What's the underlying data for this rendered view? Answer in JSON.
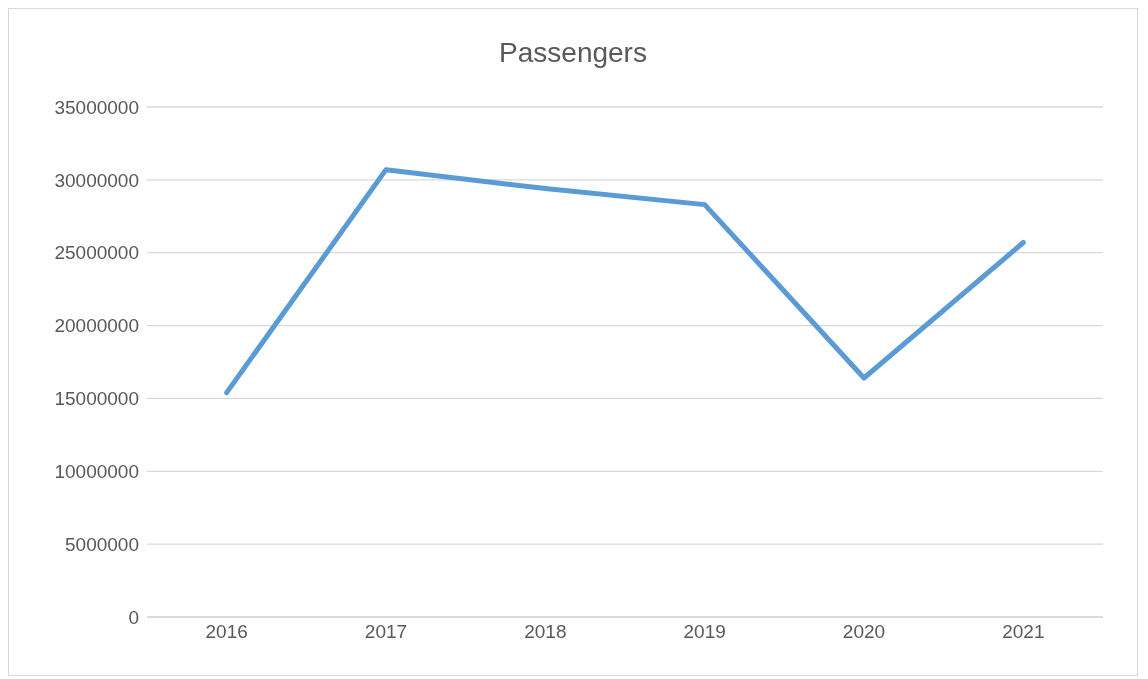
{
  "chart_data": {
    "type": "line",
    "title": "Passengers",
    "categories": [
      "2016",
      "2017",
      "2018",
      "2019",
      "2020",
      "2021"
    ],
    "series": [
      {
        "color": "#5b9bd5",
        "values": [
          15400000,
          30700000,
          29400000,
          28300000,
          16400000,
          25700000
        ]
      }
    ],
    "ylim": [
      0,
      35000000
    ],
    "yticks": [
      0,
      5000000,
      10000000,
      15000000,
      20000000,
      25000000,
      30000000,
      35000000
    ],
    "grid": "y",
    "marker": "none",
    "line_style": "solid"
  }
}
